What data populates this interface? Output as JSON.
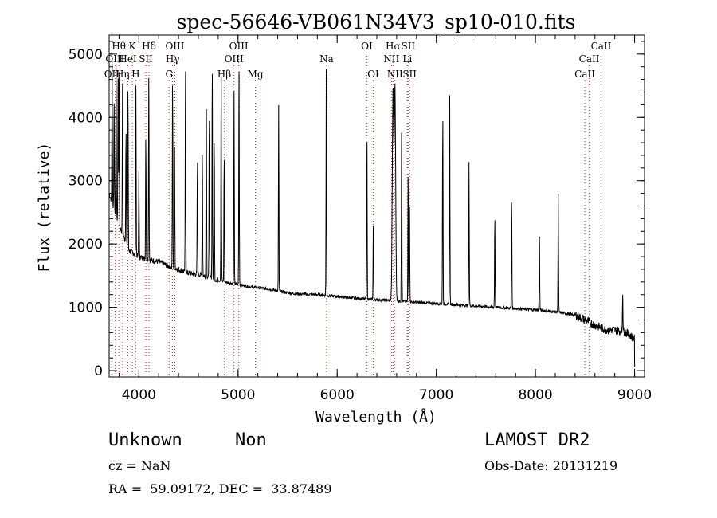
{
  "chart_data": {
    "type": "line",
    "title": "spec-56646-VB061N34V3_sp10-010.fits",
    "xlabel": "Wavelength (Å)",
    "ylabel": "Flux (relative)",
    "xlim": [
      3700,
      9100
    ],
    "ylim": [
      -100,
      5300
    ],
    "xticks": [
      "4000",
      "5000",
      "6000",
      "7000",
      "8000",
      "9000"
    ],
    "yticks": [
      "0",
      "1000",
      "2000",
      "3000",
      "4000",
      "5000"
    ],
    "continuum": [
      [
        3700,
        2800
      ],
      [
        3800,
        2300
      ],
      [
        3900,
        1900
      ],
      [
        4000,
        1800
      ],
      [
        4100,
        1750
      ],
      [
        4200,
        1720
      ],
      [
        4300,
        1650
      ],
      [
        4400,
        1600
      ],
      [
        4500,
        1540
      ],
      [
        4600,
        1520
      ],
      [
        4700,
        1480
      ],
      [
        4800,
        1430
      ],
      [
        4900,
        1390
      ],
      [
        5000,
        1360
      ],
      [
        5100,
        1330
      ],
      [
        5200,
        1310
      ],
      [
        5300,
        1290
      ],
      [
        5400,
        1260
      ],
      [
        5500,
        1230
      ],
      [
        5600,
        1210
      ],
      [
        5800,
        1200
      ],
      [
        6000,
        1170
      ],
      [
        6200,
        1140
      ],
      [
        6400,
        1120
      ],
      [
        6600,
        1100
      ],
      [
        6800,
        1080
      ],
      [
        7000,
        1060
      ],
      [
        7200,
        1040
      ],
      [
        7400,
        1020
      ],
      [
        7600,
        1000
      ],
      [
        7800,
        980
      ],
      [
        8000,
        960
      ],
      [
        8200,
        930
      ],
      [
        8400,
        880
      ],
      [
        8500,
        800
      ],
      [
        8600,
        720
      ],
      [
        8700,
        650
      ],
      [
        8800,
        640
      ],
      [
        8900,
        620
      ],
      [
        9000,
        500
      ]
    ],
    "emission_peaks": [
      [
        3730,
        4900
      ],
      [
        3750,
        4400
      ],
      [
        3770,
        5000
      ],
      [
        3790,
        4600
      ],
      [
        3800,
        4850
      ],
      [
        3835,
        4500
      ],
      [
        3870,
        3900
      ],
      [
        3890,
        4600
      ],
      [
        3970,
        4550
      ],
      [
        4000,
        3200
      ],
      [
        4070,
        3800
      ],
      [
        4100,
        4900
      ],
      [
        4340,
        4700
      ],
      [
        4360,
        3500
      ],
      [
        4470,
        5000
      ],
      [
        4590,
        3400
      ],
      [
        4640,
        3600
      ],
      [
        4680,
        4400
      ],
      [
        4710,
        4200
      ],
      [
        4740,
        5000
      ],
      [
        4760,
        3800
      ],
      [
        4830,
        4900
      ],
      [
        4860,
        3500
      ],
      [
        4960,
        4400
      ],
      [
        5010,
        5000
      ],
      [
        5410,
        4200
      ],
      [
        5890,
        4750
      ],
      [
        6300,
        3800
      ],
      [
        6365,
        2400
      ],
      [
        6563,
        4450
      ],
      [
        6583,
        4500
      ],
      [
        6650,
        4000
      ],
      [
        6716,
        3200
      ],
      [
        6730,
        2600
      ],
      [
        7065,
        4200
      ],
      [
        7135,
        4350
      ],
      [
        7330,
        3300
      ],
      [
        7590,
        2500
      ],
      [
        7760,
        2800
      ],
      [
        8040,
        2200
      ],
      [
        8230,
        2800
      ],
      [
        8880,
        1300
      ]
    ],
    "reference_lines": [
      {
        "label": "OII",
        "x": 3727,
        "row": 3
      },
      {
        "label": "Hθ",
        "x": 3798,
        "row": 1
      },
      {
        "label": "OIII",
        "x": 3760,
        "row": 2
      },
      {
        "label": "Hη",
        "x": 3835,
        "row": 3
      },
      {
        "label": "HeI",
        "x": 3889,
        "row": 2
      },
      {
        "label": "K",
        "x": 3934,
        "row": 1
      },
      {
        "label": "H",
        "x": 3968,
        "row": 3
      },
      {
        "label": "SII",
        "x": 4070,
        "row": 2
      },
      {
        "label": "Hδ",
        "x": 4102,
        "row": 1
      },
      {
        "label": "OIII",
        "x": 4363,
        "row": 1
      },
      {
        "label": "Hγ",
        "x": 4340,
        "row": 2
      },
      {
        "label": "G",
        "x": 4305,
        "row": 3
      },
      {
        "label": "Hβ",
        "x": 4861,
        "row": 3
      },
      {
        "label": "OIII",
        "x": 5007,
        "row": 1
      },
      {
        "label": "OIII",
        "x": 4959,
        "row": 2
      },
      {
        "label": "Mg",
        "x": 5175,
        "row": 3
      },
      {
        "label": "Na",
        "x": 5893,
        "row": 2
      },
      {
        "label": "OI",
        "x": 6300,
        "row": 1
      },
      {
        "label": "OI",
        "x": 6364,
        "row": 3
      },
      {
        "label": "Hα",
        "x": 6563,
        "row": 1
      },
      {
        "label": "NII",
        "x": 6548,
        "row": 2
      },
      {
        "label": "NII",
        "x": 6583,
        "row": 3
      },
      {
        "label": "SII",
        "x": 6716,
        "row": 1
      },
      {
        "label": "Li",
        "x": 6708,
        "row": 2
      },
      {
        "label": "SII",
        "x": 6731,
        "row": 3
      },
      {
        "label": "CaII",
        "x": 8662,
        "row": 1
      },
      {
        "label": "CaII",
        "x": 8542,
        "row": 2
      },
      {
        "label": "CaII",
        "x": 8498,
        "row": 3
      }
    ]
  },
  "info": {
    "class": "Unknown",
    "subclass": "Non",
    "survey": "LAMOST DR2",
    "cz": "cz = NaN",
    "obs_date": "Obs-Date: 20131219",
    "coords": "RA =  59.09172, DEC =  33.87489"
  },
  "colors": {
    "spectrum": "#000000",
    "reference_line": "#cc3333",
    "axes": "#000000"
  }
}
